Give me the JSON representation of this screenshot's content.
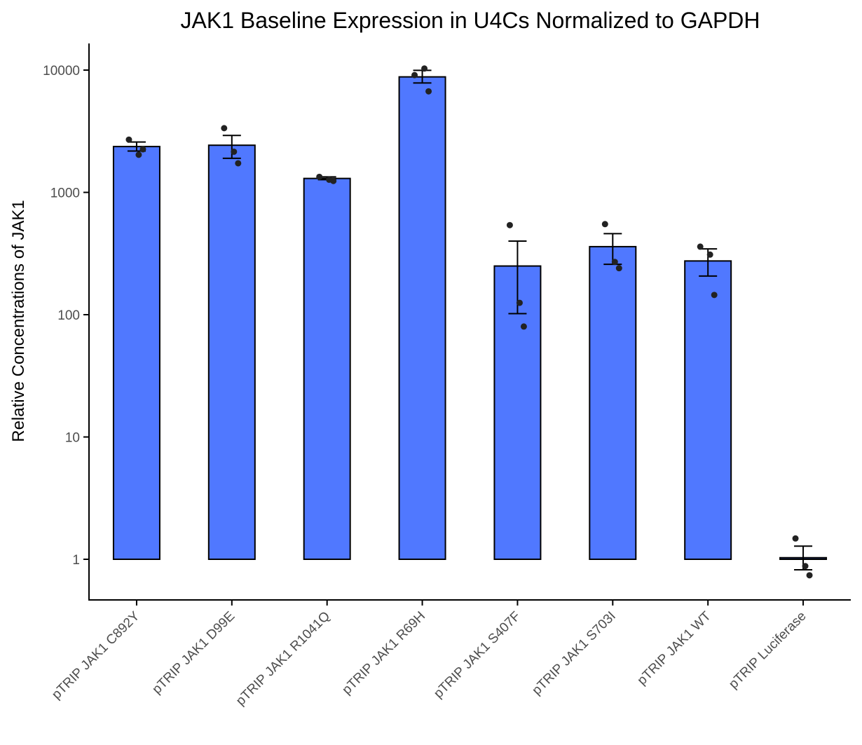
{
  "chart_data": {
    "type": "bar",
    "title": "JAK1 Baseline Expression in U4Cs Normalized to GAPDH",
    "xlabel": "",
    "ylabel": "Relative Concentrations of JAK1",
    "yscale": "log10",
    "ylim": [
      0.45,
      17000
    ],
    "yticks": [
      1,
      10,
      100,
      1000,
      10000
    ],
    "ytick_labels": [
      "1",
      "10",
      "100",
      "1000",
      "10000"
    ],
    "grid": false,
    "legend": "none",
    "bar_color": "#5078FF",
    "bar_edge_color": "#000000",
    "point_color": "#222222",
    "categories": [
      "pTRIP JAK1 C892Y",
      "pTRIP JAK1 D99E",
      "pTRIP JAK1 R1041Q",
      "pTRIP JAK1 R69H",
      "pTRIP JAK1 S407F",
      "pTRIP JAK1 S703I",
      "pTRIP JAK1 WT",
      "pTRIP Luciferase"
    ],
    "values": [
      2370,
      2430,
      1300,
      8800,
      250,
      360,
      275,
      1.03
    ],
    "error_low": [
      2180,
      1900,
      1270,
      7850,
      102,
      258,
      207,
      0.82
    ],
    "error_high": [
      2580,
      2920,
      1340,
      9950,
      400,
      460,
      345,
      1.28
    ],
    "points": [
      [
        2700,
        2030,
        2250
      ],
      [
        3350,
        2150,
        1730
      ],
      [
        1340,
        1270,
        1240
      ],
      [
        9100,
        10300,
        6700
      ],
      [
        540,
        125,
        80
      ],
      [
        550,
        270,
        240
      ],
      [
        360,
        310,
        145
      ],
      [
        1.48,
        0.88,
        0.74
      ]
    ]
  }
}
